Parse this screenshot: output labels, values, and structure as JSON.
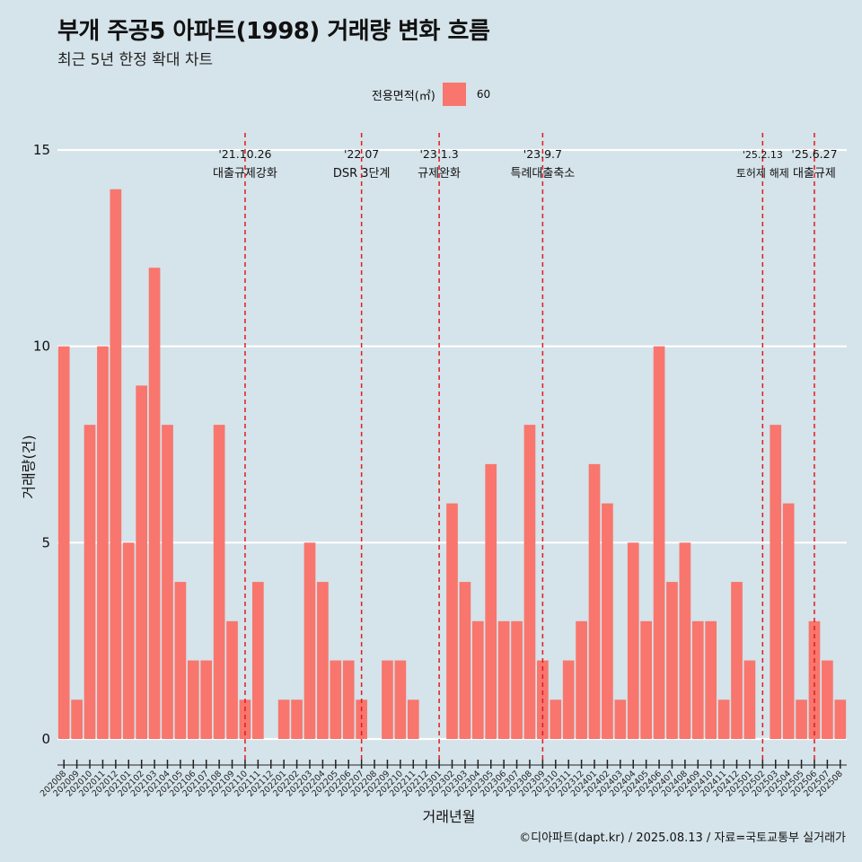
{
  "title": "부개 주공5 아파트(1998) 거래량 변화 흐름",
  "subtitle": "최근 5년 한정 확대 차트",
  "legend": {
    "title": "전용면적(㎡)",
    "item": "60",
    "color": "#f8766d"
  },
  "caption": "©디아파트(dapt.kr) / 2025.08.13 / 자료=국토교통부 실거래가",
  "chart_data": {
    "type": "bar",
    "xlabel": "거래년월",
    "ylabel": "거래량(건)",
    "ylim": [
      0,
      15
    ],
    "yticks": [
      0,
      5,
      10,
      15
    ],
    "grid": true,
    "legend_position": "top",
    "bar_color": "#f8766d",
    "categories": [
      "202008",
      "202009",
      "202010",
      "202011",
      "202012",
      "202101",
      "202102",
      "202103",
      "202104",
      "202105",
      "202106",
      "202107",
      "202108",
      "202109",
      "202110",
      "202111",
      "202112",
      "202201",
      "202202",
      "202203",
      "202204",
      "202205",
      "202206",
      "202207",
      "202208",
      "202209",
      "202210",
      "202211",
      "202212",
      "202301",
      "202302",
      "202303",
      "202304",
      "202305",
      "202306",
      "202307",
      "202308",
      "202309",
      "202310",
      "202311",
      "202312",
      "202401",
      "202402",
      "202403",
      "202404",
      "202405",
      "202406",
      "202407",
      "202408",
      "202409",
      "202410",
      "202411",
      "202412",
      "202501",
      "202502",
      "202503",
      "202504",
      "202505",
      "202506",
      "202507",
      "202508"
    ],
    "values": [
      10,
      1,
      8,
      10,
      14,
      5,
      9,
      12,
      8,
      4,
      2,
      2,
      8,
      3,
      1,
      4,
      0,
      1,
      1,
      5,
      4,
      2,
      2,
      1,
      0,
      2,
      2,
      1,
      0,
      0,
      6,
      4,
      3,
      7,
      3,
      3,
      8,
      2,
      1,
      2,
      3,
      7,
      6,
      1,
      5,
      3,
      10,
      4,
      5,
      3,
      3,
      1,
      4,
      2,
      0,
      8,
      6,
      1,
      3,
      2,
      1
    ],
    "annotations": [
      {
        "date": "'21.10.26",
        "label": "대출규제강화",
        "at": "202110"
      },
      {
        "date": "'22.07",
        "label": "DSR 3단계",
        "at": "202207"
      },
      {
        "date": "'23.1.3",
        "label": "규제완화",
        "at": "202301"
      },
      {
        "date": "'23.9.7",
        "label": "특례대출축소",
        "at": "202309"
      },
      {
        "date": "'25.2.13",
        "label": "토허제 해제",
        "at": "202502"
      },
      {
        "date": "'25.6.27",
        "label": "대출규제",
        "at": "202506"
      }
    ],
    "annotation_color": "#e41a1c"
  }
}
